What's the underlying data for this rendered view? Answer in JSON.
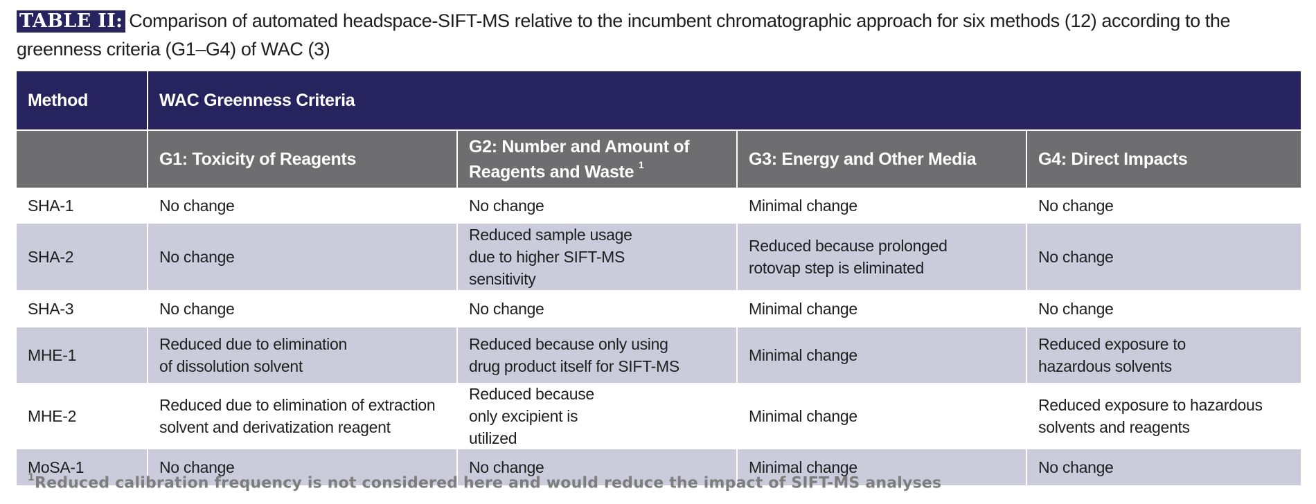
{
  "caption": {
    "label": "TABLE II:",
    "text": "Comparison of automated headspace-SIFT-MS relative to the incumbent chromatographic approach for six methods (12) according to the greenness criteria (G1–G4) of WAC (3)"
  },
  "table": {
    "method_header": "Method",
    "criteria_header": "WAC Greenness Criteria",
    "columns": [
      {
        "label": "G1: Toxicity of Reagents",
        "sup": ""
      },
      {
        "label": "G2: Number and Amount of Reagents and Waste",
        "sup": "1"
      },
      {
        "label": "G3: Energy and Other Media",
        "sup": ""
      },
      {
        "label": "G4: Direct Impacts",
        "sup": ""
      }
    ],
    "rows": [
      {
        "method": "SHA-1",
        "g1": "No change",
        "g2": "No change",
        "g3": "Minimal change",
        "g4": "No change"
      },
      {
        "method": "SHA-2",
        "g1": "No change",
        "g2": "Reduced sample usage due to higher SIFT-MS sensitivity",
        "g3": "Reduced because prolonged rotovap step is eliminated",
        "g4": "No change"
      },
      {
        "method": "SHA-3",
        "g1": "No change",
        "g2": "No change",
        "g3": "Minimal change",
        "g4": "No change"
      },
      {
        "method": "MHE-1",
        "g1": "Reduced due to elimination of dissolution solvent",
        "g2": "Reduced because only using drug product itself for SIFT-MS",
        "g3": "Minimal change",
        "g4": "Reduced exposure to hazardous solvents"
      },
      {
        "method": "MHE-2",
        "g1": "Reduced due to elimination of extraction solvent and derivatization reagent",
        "g2": "Reduced because only excipient is utilized",
        "g3": "Minimal change",
        "g4": "Reduced exposure to hazardous solvents and reagents"
      },
      {
        "method": "MoSA-1",
        "g1": "No change",
        "g2": "No change",
        "g3": "Minimal change",
        "g4": "No change"
      }
    ]
  },
  "footnote": {
    "sup": "1",
    "text": "Reduced calibration frequency is not considered here and would reduce the impact of SIFT-MS analyses"
  },
  "colors": {
    "header_navy": "#26235f",
    "subheader_gray": "#6e6e70",
    "row_lavender": "#cccbdc",
    "footnote_gray": "#7d7d7d"
  }
}
